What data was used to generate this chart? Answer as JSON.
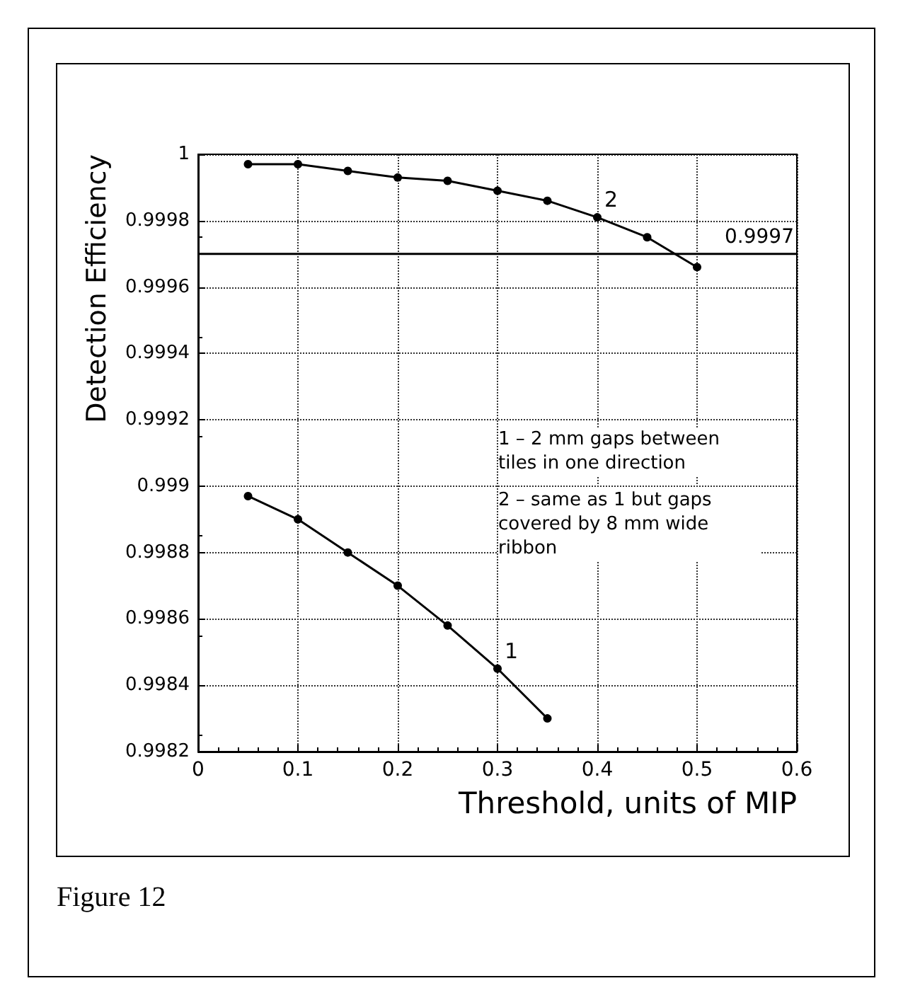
{
  "chart_data": {
    "type": "line",
    "xlabel": "Threshold, units of MIP",
    "ylabel": "Detection Efficiency",
    "xlim": [
      0,
      0.6
    ],
    "xticks": [
      0,
      0.1,
      0.2,
      0.3,
      0.4,
      0.5,
      0.6
    ],
    "ylim": [
      0.9982,
      1
    ],
    "yticks": [
      0.9982,
      0.9984,
      0.9986,
      0.9988,
      0.999,
      0.9992,
      0.9994,
      0.9996,
      0.9998,
      1
    ],
    "series": [
      {
        "color": "#000000",
        "x": [
          0.05,
          0.1,
          0.15,
          0.2,
          0.25,
          0.3,
          0.35,
          0.4,
          0.45,
          0.5
        ],
        "values": [
          0.99997,
          0.99997,
          0.99995,
          0.99993,
          0.99992,
          0.99989,
          0.99986,
          0.99981,
          0.99975,
          0.99966
        ]
      },
      {
        "color": "#000000",
        "x": [
          0.05,
          0.1,
          0.15,
          0.2,
          0.25,
          0.3,
          0.35
        ],
        "values": [
          0.99897,
          0.9989,
          0.9988,
          0.9987,
          0.99858,
          0.99845,
          0.9983
        ]
      }
    ],
    "ref_lines": [
      {
        "axis": "y",
        "value": 0.9997,
        "label": "0.9997",
        "color": "#000000"
      }
    ],
    "annotations": [
      {
        "text": "2",
        "x": 0.4,
        "y": 0.99981
      },
      {
        "text": "1",
        "x": 0.3,
        "y": 0.99845
      },
      "1 – 2 mm gaps between tiles in one direction",
      "2 – same as 1 but gaps covered by 8 mm wide ribbon",
      "Figure 12"
    ],
    "grid": true,
    "marker": "circle",
    "line_style": "solid"
  }
}
